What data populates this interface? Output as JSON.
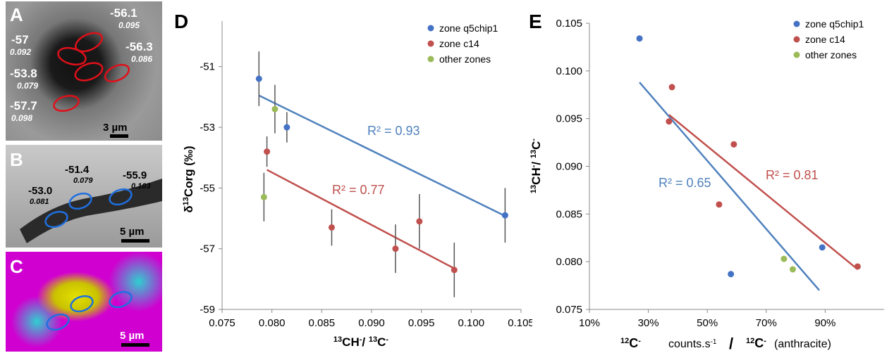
{
  "panels": {
    "A": {
      "letter": "A",
      "labels": [
        {
          "value": "-56.1",
          "sub": "0.095"
        },
        {
          "value": "-57",
          "sub": "0.092"
        },
        {
          "value": "-56.3",
          "sub": "0.086"
        },
        {
          "value": "-53.8",
          "sub": "0.079"
        },
        {
          "value": "-57.7",
          "sub": "0.098"
        }
      ],
      "scale": "3 µm"
    },
    "B": {
      "letter": "B",
      "labels": [
        {
          "value": "-51.4",
          "sub": "0.079"
        },
        {
          "value": "-55.9",
          "sub": "0.103"
        },
        {
          "value": "-53.0",
          "sub": "0.081"
        }
      ],
      "scale": "5 µm"
    },
    "C": {
      "letter": "C",
      "scale": "5 µm"
    }
  },
  "colors": {
    "blue": "#4472c4",
    "red": "#c0504d",
    "green": "#9bbb59",
    "trend_blue": "#4f81bd",
    "trend_red": "#c0504d"
  },
  "chart_data": [
    {
      "panel": "D",
      "type": "scatter",
      "xlabel": "13CH-/13C-",
      "ylabel": "δ13Corg (‰)",
      "xlim": [
        0.075,
        0.105
      ],
      "ylim": [
        -59,
        -49.5
      ],
      "xticks": [
        "0.075",
        "0.080",
        "0.085",
        "0.090",
        "0.095",
        "0.100",
        "0.105"
      ],
      "yticks": [
        "-51",
        "-53",
        "-55",
        "-57",
        "-59"
      ],
      "legend_position": "top-right",
      "series": [
        {
          "name": "zone q5chip1",
          "color": "#4472c4",
          "points": [
            [
              0.0787,
              -51.4,
              0.9
            ],
            [
              0.0815,
              -53.0,
              0.5
            ],
            [
              0.1034,
              -55.9,
              0.9
            ]
          ],
          "trend": {
            "x": [
              0.0787,
              0.1034
            ],
            "y": [
              -51.95,
              -55.92
            ],
            "r2": "R² = 0.93"
          }
        },
        {
          "name": "zone c14",
          "color": "#c0504d",
          "points": [
            [
              0.0795,
              -53.8,
              0.5
            ],
            [
              0.086,
              -56.3,
              0.6
            ],
            [
              0.0924,
              -57.0,
              0.8
            ],
            [
              0.0948,
              -56.1,
              0.9
            ],
            [
              0.0983,
              -57.7,
              0.9
            ]
          ],
          "trend": {
            "x": [
              0.0795,
              0.0983
            ],
            "y": [
              -54.4,
              -57.65
            ],
            "r2": "R² = 0.77"
          }
        },
        {
          "name": "other zones",
          "color": "#9bbb59",
          "points": [
            [
              0.0803,
              -52.4,
              0.8
            ],
            [
              0.0792,
              -55.3,
              0.8
            ]
          ]
        }
      ]
    },
    {
      "panel": "E",
      "type": "scatter",
      "xlabel": "counts.s-1",
      "xlabel_left": "12C-",
      "xlabel_right": "12C-",
      "xlabel_tail": "(anthracite)",
      "ylabel": "13CH-/13C-",
      "xlim": [
        10,
        110
      ],
      "ylim": [
        0.075,
        0.105
      ],
      "xticks": [
        "10%",
        "30%",
        "50%",
        "70%",
        "90%"
      ],
      "yticks": [
        "0.075",
        "0.080",
        "0.085",
        "0.090",
        "0.095",
        "0.100",
        "0.105"
      ],
      "legend_position": "top-right",
      "series": [
        {
          "name": "zone q5chip1",
          "color": "#4472c4",
          "points": [
            [
              27,
              0.1034
            ],
            [
              58,
              0.0787
            ],
            [
              89,
              0.0815
            ]
          ],
          "trend": {
            "x": [
              27,
              88
            ],
            "y": [
              0.0988,
              0.077
            ],
            "r2": "R² = 0.65"
          }
        },
        {
          "name": "zone c14",
          "color": "#c0504d",
          "points": [
            [
              38,
              0.0983
            ],
            [
              37,
              0.0947
            ],
            [
              59,
              0.0923
            ],
            [
              54,
              0.086
            ],
            [
              101,
              0.0795
            ]
          ],
          "trend": {
            "x": [
              37,
              101
            ],
            "y": [
              0.0954,
              0.0792
            ],
            "r2": "R² = 0.81"
          }
        },
        {
          "name": "other zones",
          "color": "#9bbb59",
          "points": [
            [
              76,
              0.0803
            ],
            [
              79,
              0.0792
            ]
          ]
        }
      ]
    }
  ]
}
